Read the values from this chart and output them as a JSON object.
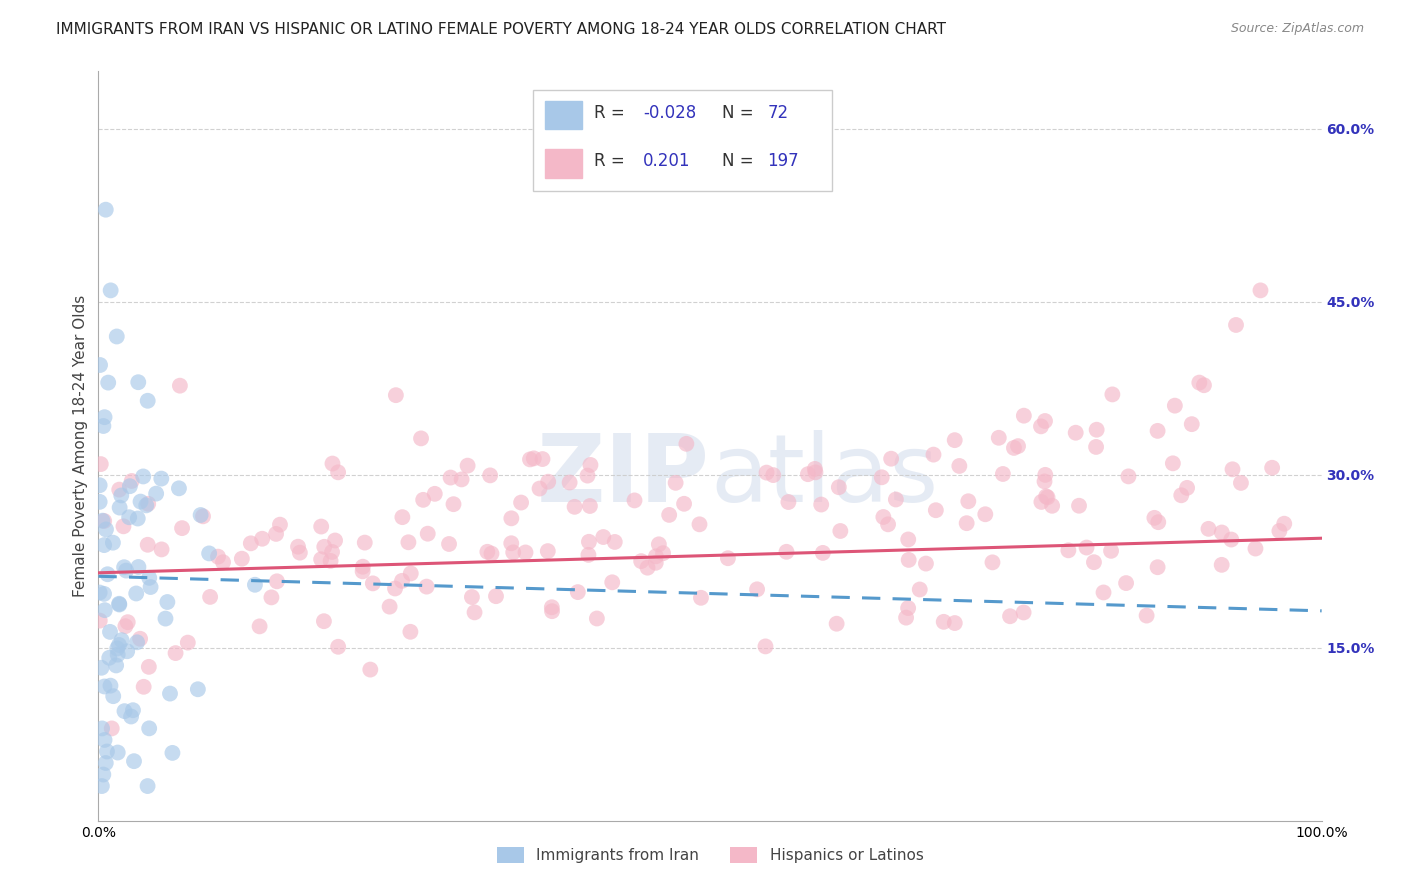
{
  "title": "IMMIGRANTS FROM IRAN VS HISPANIC OR LATINO FEMALE POVERTY AMONG 18-24 YEAR OLDS CORRELATION CHART",
  "source": "Source: ZipAtlas.com",
  "ylabel": "Female Poverty Among 18-24 Year Olds",
  "xlim": [
    0,
    1.0
  ],
  "ylim": [
    0,
    0.65
  ],
  "yticks": [
    0.15,
    0.3,
    0.45,
    0.6
  ],
  "ytick_labels": [
    "15.0%",
    "30.0%",
    "45.0%",
    "60.0%"
  ],
  "xtick_labels": [
    "0.0%",
    "100.0%"
  ],
  "legend_r_n": [
    {
      "R": "-0.028",
      "N": "72"
    },
    {
      "R": "0.201",
      "N": "197"
    }
  ],
  "legend_entries": [
    {
      "label": "Immigrants from Iran",
      "color": "#a8c8e8"
    },
    {
      "label": "Hispanics or Latinos",
      "color": "#f4b8c8"
    }
  ],
  "watermark_zip": "ZIP",
  "watermark_atlas": "atlas",
  "background_color": "#ffffff",
  "grid_color": "#cccccc",
  "blue_line_color": "#5599cc",
  "pink_line_color": "#dd5577",
  "blue_dot_color": "#a8c8e8",
  "pink_dot_color": "#f4b8c8",
  "title_fontsize": 11,
  "axis_label_fontsize": 11,
  "tick_fontsize": 10,
  "right_tick_color": "#3333bb",
  "legend_text_color": "#3333bb"
}
